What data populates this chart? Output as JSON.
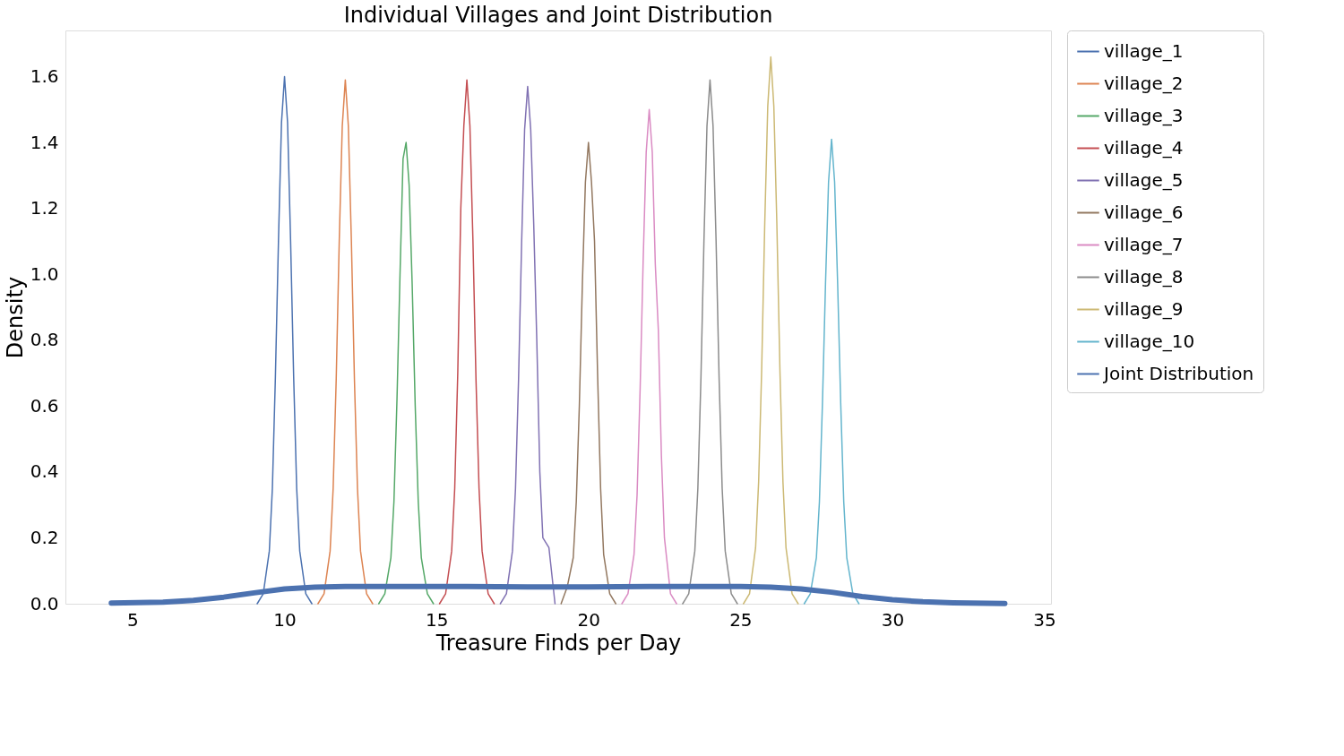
{
  "chart_data": {
    "type": "line",
    "title": "Individual Villages and Joint Distribution",
    "xlabel": "Treasure Finds per Day",
    "ylabel": "Density",
    "xlim": [
      2.79,
      35.22
    ],
    "xticks": [
      5,
      10,
      15,
      20,
      25,
      30,
      35
    ],
    "ylim": [
      0,
      1.74
    ],
    "yticks": [
      {
        "value": 0,
        "label": "0.0"
      },
      {
        "value": 0.2,
        "label": "0.2"
      },
      {
        "value": 0.4,
        "label": "0.4"
      },
      {
        "value": 0.6,
        "label": "0.6"
      },
      {
        "value": 0.8,
        "label": "0.8"
      },
      {
        "value": 1.0,
        "label": "1.0"
      },
      {
        "value": 1.2,
        "label": "1.2"
      },
      {
        "value": 1.4,
        "label": "1.4"
      },
      {
        "value": 1.6,
        "label": "1.6"
      }
    ],
    "grid": false,
    "legend": "top right",
    "marker": "none",
    "line_style": "solid",
    "series": [
      {
        "name": "village_1",
        "color": "#4c72b0",
        "x": [
          9.1,
          9.3,
          9.5,
          9.6,
          9.7,
          9.8,
          9.9,
          10.0,
          10.1,
          10.2,
          10.3,
          10.4,
          10.5,
          10.7,
          10.9
        ],
        "values": [
          0,
          0.03,
          0.16,
          0.35,
          0.69,
          1.1,
          1.46,
          1.6,
          1.46,
          1.1,
          0.69,
          0.35,
          0.16,
          0.03,
          0
        ]
      },
      {
        "name": "village_2",
        "color": "#dd8452",
        "x": [
          11.1,
          11.3,
          11.5,
          11.6,
          11.7,
          11.8,
          11.9,
          12.0,
          12.1,
          12.2,
          12.3,
          12.4,
          12.5,
          12.7,
          12.9
        ],
        "values": [
          0,
          0.03,
          0.16,
          0.35,
          0.68,
          1.1,
          1.45,
          1.59,
          1.45,
          1.1,
          0.68,
          0.35,
          0.16,
          0.03,
          0
        ]
      },
      {
        "name": "village_3",
        "color": "#55a868",
        "x": [
          13.1,
          13.3,
          13.5,
          13.6,
          13.7,
          13.8,
          13.9,
          14.0,
          14.1,
          14.2,
          14.3,
          14.4,
          14.5,
          14.7,
          14.9
        ],
        "values": [
          0,
          0.03,
          0.14,
          0.31,
          0.62,
          1.0,
          1.35,
          1.4,
          1.27,
          0.97,
          0.6,
          0.31,
          0.14,
          0.03,
          0
        ]
      },
      {
        "name": "village_4",
        "color": "#c44e52",
        "x": [
          15.1,
          15.3,
          15.5,
          15.6,
          15.7,
          15.8,
          15.9,
          16.0,
          16.1,
          16.2,
          16.3,
          16.4,
          16.5,
          16.7,
          16.9
        ],
        "values": [
          0,
          0.03,
          0.16,
          0.35,
          0.7,
          1.2,
          1.45,
          1.59,
          1.45,
          1.1,
          0.68,
          0.35,
          0.16,
          0.03,
          0
        ]
      },
      {
        "name": "village_5",
        "color": "#8172b3",
        "x": [
          17.1,
          17.3,
          17.5,
          17.6,
          17.7,
          17.8,
          17.9,
          18.0,
          18.1,
          18.2,
          18.3,
          18.4,
          18.5,
          18.7,
          18.9
        ],
        "values": [
          0,
          0.03,
          0.16,
          0.35,
          0.68,
          1.09,
          1.44,
          1.57,
          1.44,
          1.15,
          0.8,
          0.4,
          0.2,
          0.17,
          0
        ]
      },
      {
        "name": "village_6",
        "color": "#937860",
        "x": [
          19.1,
          19.3,
          19.5,
          19.6,
          19.7,
          19.8,
          19.9,
          20.0,
          20.1,
          20.2,
          20.3,
          20.4,
          20.5,
          20.7,
          20.9
        ],
        "values": [
          0,
          0.05,
          0.14,
          0.31,
          0.6,
          0.97,
          1.28,
          1.4,
          1.28,
          1.1,
          0.7,
          0.35,
          0.15,
          0.03,
          0
        ]
      },
      {
        "name": "village_7",
        "color": "#da8bc3",
        "x": [
          21.1,
          21.3,
          21.5,
          21.6,
          21.7,
          21.8,
          21.9,
          22.0,
          22.1,
          22.2,
          22.3,
          22.4,
          22.5,
          22.7,
          22.9
        ],
        "values": [
          0,
          0.03,
          0.15,
          0.33,
          0.65,
          1.04,
          1.37,
          1.5,
          1.37,
          1.03,
          0.83,
          0.45,
          0.2,
          0.03,
          0
        ]
      },
      {
        "name": "village_8",
        "color": "#8c8c8c",
        "x": [
          23.1,
          23.3,
          23.5,
          23.6,
          23.7,
          23.8,
          23.9,
          24.0,
          24.1,
          24.2,
          24.3,
          24.4,
          24.5,
          24.7,
          24.9
        ],
        "values": [
          0,
          0.03,
          0.16,
          0.35,
          0.68,
          1.1,
          1.45,
          1.59,
          1.45,
          1.1,
          0.68,
          0.35,
          0.16,
          0.03,
          0
        ]
      },
      {
        "name": "village_9",
        "color": "#ccb974",
        "x": [
          25.1,
          25.3,
          25.5,
          25.6,
          25.7,
          25.8,
          25.9,
          26.0,
          26.1,
          26.2,
          26.3,
          26.4,
          26.5,
          26.7,
          26.9
        ],
        "values": [
          0,
          0.03,
          0.17,
          0.37,
          0.71,
          1.15,
          1.51,
          1.66,
          1.51,
          1.15,
          0.71,
          0.37,
          0.17,
          0.03,
          0
        ]
      },
      {
        "name": "village_10",
        "color": "#64b5cd",
        "x": [
          27.1,
          27.3,
          27.5,
          27.6,
          27.7,
          27.8,
          27.9,
          28.0,
          28.1,
          28.2,
          28.3,
          28.4,
          28.5,
          28.7,
          28.9
        ],
        "values": [
          0,
          0.03,
          0.14,
          0.31,
          0.61,
          0.97,
          1.28,
          1.41,
          1.28,
          0.97,
          0.61,
          0.31,
          0.14,
          0.03,
          0
        ]
      },
      {
        "name": "Joint Distribution",
        "color": "#4c72b0",
        "x": [
          4.3,
          6,
          7,
          8,
          9,
          10,
          11,
          12,
          14,
          16,
          18,
          20,
          22,
          24,
          25,
          26,
          27,
          28,
          29,
          30,
          31,
          32,
          33.7
        ],
        "values": [
          0.002,
          0.005,
          0.01,
          0.02,
          0.033,
          0.045,
          0.05,
          0.052,
          0.052,
          0.052,
          0.051,
          0.051,
          0.052,
          0.052,
          0.052,
          0.05,
          0.045,
          0.035,
          0.022,
          0.012,
          0.006,
          0.003,
          0.001
        ]
      }
    ]
  }
}
